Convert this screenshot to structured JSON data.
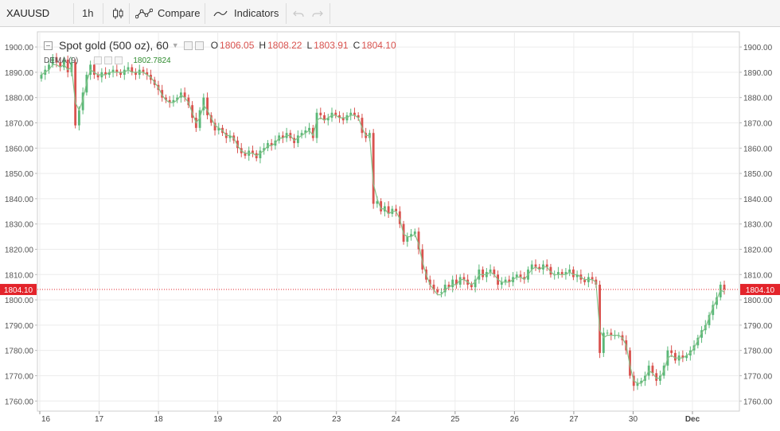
{
  "toolbar": {
    "symbol": "XAUUSD",
    "interval": "1h",
    "compare_label": "Compare",
    "indicators_label": "Indicators",
    "undo_icon": "undo-arrow",
    "redo_icon": "redo-arrow"
  },
  "legend": {
    "title": "Spot gold (500 oz), 60",
    "open_label": "O",
    "open": "1806.05",
    "high_label": "H",
    "high": "1808.22",
    "low_label": "L",
    "low": "1803.91",
    "close_label": "C",
    "close": "1804.10"
  },
  "indicator": {
    "name": "DEMA (9)",
    "value": "1802.7824"
  },
  "colors": {
    "up": "#26a69a",
    "up_body": "#5ab878",
    "down": "#d9534f",
    "last_price_line": "#e3242b",
    "dema_line": "#86c28a",
    "grid": "#ececec"
  },
  "chart_data": {
    "type": "candlestick",
    "ylim": [
      1756,
      1906
    ],
    "y_ticks": [
      "1900.00",
      "1890.00",
      "1880.00",
      "1870.00",
      "1860.00",
      "1850.00",
      "1840.00",
      "1830.00",
      "1820.00",
      "1810.00",
      "1800.00",
      "1790.00",
      "1780.00",
      "1770.00",
      "1760.00"
    ],
    "x_ticks": [
      "16",
      "17",
      "18",
      "19",
      "20",
      "23",
      "24",
      "25",
      "26",
      "27",
      "30",
      "Dec"
    ],
    "last_price_label": "1804.10",
    "last_price": 1804.1,
    "series": [
      {
        "name": "Spot gold (500 oz), 60",
        "kind": "ohlc",
        "candles_close": [
          1889,
          1891,
          1893,
          1896,
          1894,
          1892,
          1895,
          1890,
          1894,
          1869,
          1875,
          1882,
          1889,
          1893,
          1889,
          1888,
          1890,
          1889,
          1890,
          1891,
          1890,
          1889,
          1891,
          1892,
          1890,
          1889,
          1891,
          1890,
          1889,
          1887,
          1885,
          1883,
          1880,
          1879,
          1878,
          1879,
          1880,
          1882,
          1880,
          1877,
          1872,
          1868,
          1875,
          1880,
          1873,
          1870,
          1867,
          1868,
          1866,
          1864,
          1865,
          1863,
          1860,
          1858,
          1857,
          1859,
          1858,
          1856,
          1859,
          1860,
          1862,
          1861,
          1863,
          1865,
          1864,
          1866,
          1864,
          1862,
          1865,
          1866,
          1867,
          1868,
          1864,
          1874,
          1873,
          1871,
          1872,
          1874,
          1873,
          1872,
          1871,
          1873,
          1874,
          1873,
          1872,
          1866,
          1864,
          1866,
          1838,
          1839,
          1835,
          1837,
          1834,
          1836,
          1835,
          1830,
          1823,
          1825,
          1826,
          1827,
          1820,
          1812,
          1808,
          1806,
          1804,
          1803,
          1803,
          1806,
          1805,
          1808,
          1806,
          1809,
          1808,
          1806,
          1805,
          1808,
          1812,
          1809,
          1811,
          1812,
          1810,
          1806,
          1807,
          1808,
          1807,
          1809,
          1810,
          1809,
          1808,
          1812,
          1814,
          1813,
          1812,
          1814,
          1813,
          1810,
          1810,
          1811,
          1810,
          1811,
          1812,
          1809,
          1810,
          1808,
          1807,
          1809,
          1808,
          1806,
          1779,
          1787,
          1787,
          1786,
          1786,
          1786,
          1784,
          1780,
          1770,
          1766,
          1767,
          1768,
          1770,
          1774,
          1771,
          1768,
          1770,
          1774,
          1780,
          1779,
          1776,
          1778,
          1777,
          1778,
          1780,
          1782,
          1785,
          1788,
          1790,
          1794,
          1798,
          1801,
          1806,
          1804.1
        ]
      },
      {
        "name": "DEMA (9)",
        "kind": "line",
        "values": [
          1889,
          1890,
          1891,
          1893,
          1893,
          1892,
          1893,
          1891,
          1892,
          1878,
          1875,
          1879,
          1886,
          1891,
          1890,
          1889,
          1889,
          1889,
          1890,
          1890,
          1890,
          1890,
          1890,
          1891,
          1890,
          1890,
          1890,
          1890,
          1889,
          1888,
          1886,
          1884,
          1881,
          1879,
          1878,
          1878,
          1879,
          1881,
          1880,
          1878,
          1874,
          1870,
          1872,
          1877,
          1875,
          1872,
          1869,
          1868,
          1867,
          1865,
          1865,
          1864,
          1861,
          1859,
          1858,
          1858,
          1858,
          1857,
          1858,
          1859,
          1861,
          1861,
          1862,
          1864,
          1864,
          1865,
          1865,
          1863,
          1864,
          1865,
          1866,
          1867,
          1865,
          1871,
          1872,
          1871,
          1872,
          1873,
          1873,
          1872,
          1872,
          1872,
          1873,
          1873,
          1872,
          1868,
          1865,
          1865,
          1846,
          1840,
          1836,
          1836,
          1834,
          1835,
          1835,
          1832,
          1826,
          1825,
          1825,
          1826,
          1822,
          1815,
          1810,
          1806,
          1804,
          1802,
          1802,
          1804,
          1805,
          1806,
          1806,
          1808,
          1808,
          1807,
          1806,
          1807,
          1810,
          1810,
          1810,
          1811,
          1810,
          1808,
          1807,
          1807,
          1807,
          1808,
          1809,
          1809,
          1808,
          1810,
          1812,
          1813,
          1812,
          1813,
          1813,
          1811,
          1810,
          1810,
          1810,
          1810,
          1811,
          1810,
          1810,
          1809,
          1808,
          1808,
          1808,
          1807,
          1788,
          1785,
          1786,
          1786,
          1786,
          1786,
          1785,
          1782,
          1774,
          1768,
          1767,
          1767,
          1769,
          1772,
          1771,
          1769,
          1769,
          1772,
          1777,
          1778,
          1777,
          1777,
          1777,
          1778,
          1779,
          1781,
          1784,
          1787,
          1789,
          1793,
          1797,
          1800,
          1804,
          1803
        ]
      }
    ]
  }
}
